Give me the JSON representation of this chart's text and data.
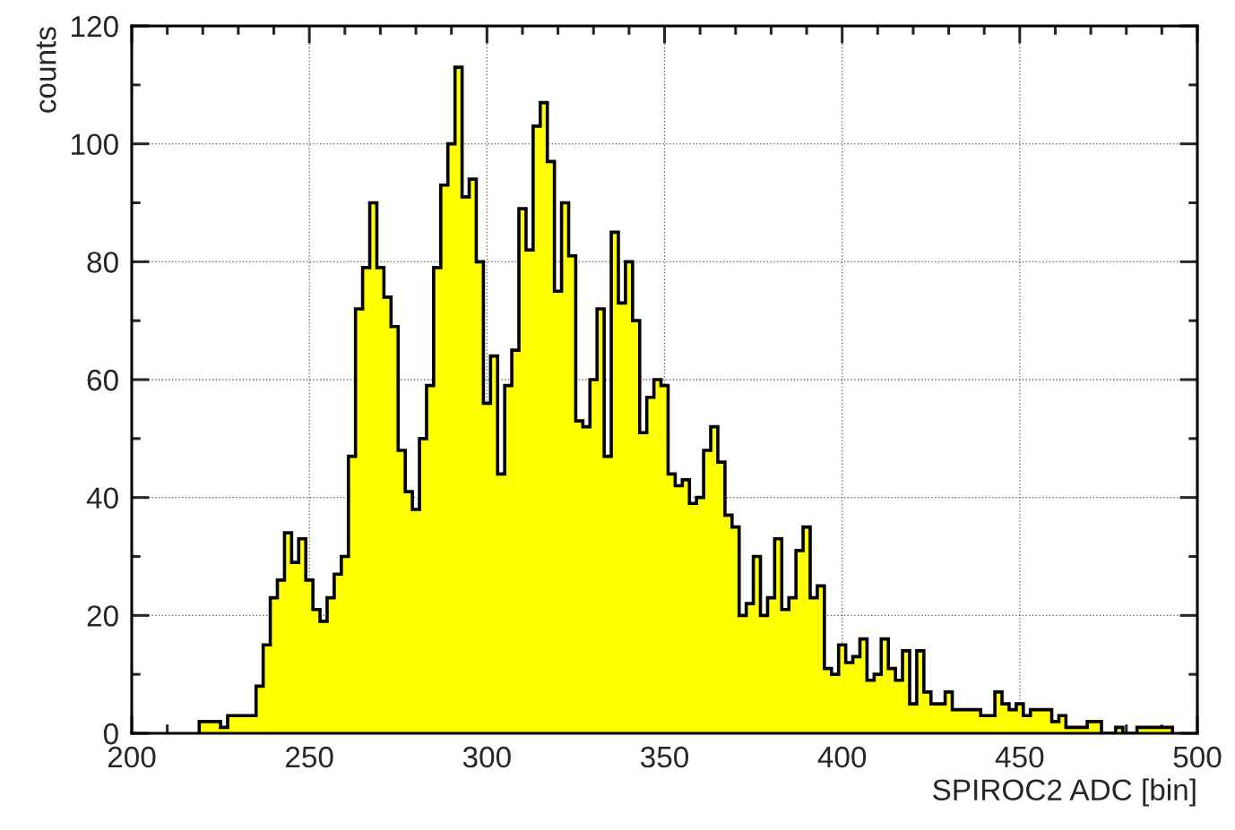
{
  "chart_data": {
    "type": "histogram",
    "xlabel": "SPIROC2 ADC [bin]",
    "ylabel": "counts",
    "color": "#ffff00",
    "bins": [
      219,
      221,
      223,
      225,
      227,
      229,
      231,
      233,
      235,
      237,
      239,
      241,
      243,
      245,
      247,
      249,
      251,
      253,
      255,
      257,
      259,
      261,
      263,
      265,
      267,
      269,
      271,
      273,
      275,
      277,
      279,
      281,
      283,
      285,
      287,
      289,
      291,
      293,
      295,
      297,
      299,
      301,
      303,
      305,
      307,
      309,
      311,
      313,
      315,
      317,
      319,
      321,
      323,
      325,
      327,
      329,
      331,
      333,
      335,
      337,
      339,
      341,
      343,
      345,
      347,
      349,
      351,
      353,
      355,
      357,
      359,
      361,
      363,
      365,
      367,
      369,
      371,
      373,
      375,
      377,
      379,
      381,
      383,
      385,
      387,
      389,
      391,
      393,
      395,
      397,
      399,
      401,
      403,
      405,
      407,
      409,
      411,
      413,
      415,
      417,
      419,
      421,
      423,
      425,
      427,
      429,
      431,
      433,
      435,
      437,
      439,
      441,
      443,
      445,
      447,
      449,
      451,
      453,
      455,
      457,
      459,
      461,
      463,
      465,
      467,
      469,
      471,
      473,
      475,
      477,
      479,
      481,
      483,
      485,
      487,
      489,
      491,
      493
    ],
    "values": [
      2,
      2,
      2,
      1,
      3,
      3,
      3,
      3,
      8,
      15,
      23,
      26,
      34,
      29,
      33,
      26,
      21,
      19,
      23,
      27,
      30,
      47,
      72,
      79,
      90,
      79,
      74,
      69,
      48,
      41,
      38,
      50,
      59,
      79,
      93,
      100,
      113,
      91,
      94,
      80,
      56,
      64,
      44,
      59,
      65,
      89,
      82,
      103,
      107,
      97,
      75,
      90,
      81,
      53,
      52,
      60,
      72,
      47,
      85,
      73,
      80,
      70,
      51,
      57,
      60,
      59,
      44,
      42,
      43,
      39,
      40,
      48,
      52,
      46,
      37,
      35,
      20,
      22,
      30,
      20,
      23,
      33,
      21,
      23,
      31,
      35,
      23,
      25,
      11,
      10,
      15,
      12,
      13,
      16,
      9,
      10,
      16,
      11,
      9,
      14,
      5,
      14,
      7,
      5,
      5,
      7,
      4,
      4,
      4,
      4,
      3,
      3,
      7,
      5,
      4,
      5,
      3,
      4,
      4,
      4,
      2,
      3,
      1,
      1,
      1,
      2,
      2,
      0,
      0,
      1,
      0,
      0,
      1,
      1,
      1,
      1,
      1
    ],
    "xlim": [
      200,
      500
    ],
    "xticks": [
      200,
      250,
      300,
      350,
      400,
      450,
      500
    ],
    "ylim": [
      0,
      120
    ],
    "yticks": [
      0,
      20,
      40,
      60,
      80,
      100,
      120
    ],
    "grid": true
  }
}
